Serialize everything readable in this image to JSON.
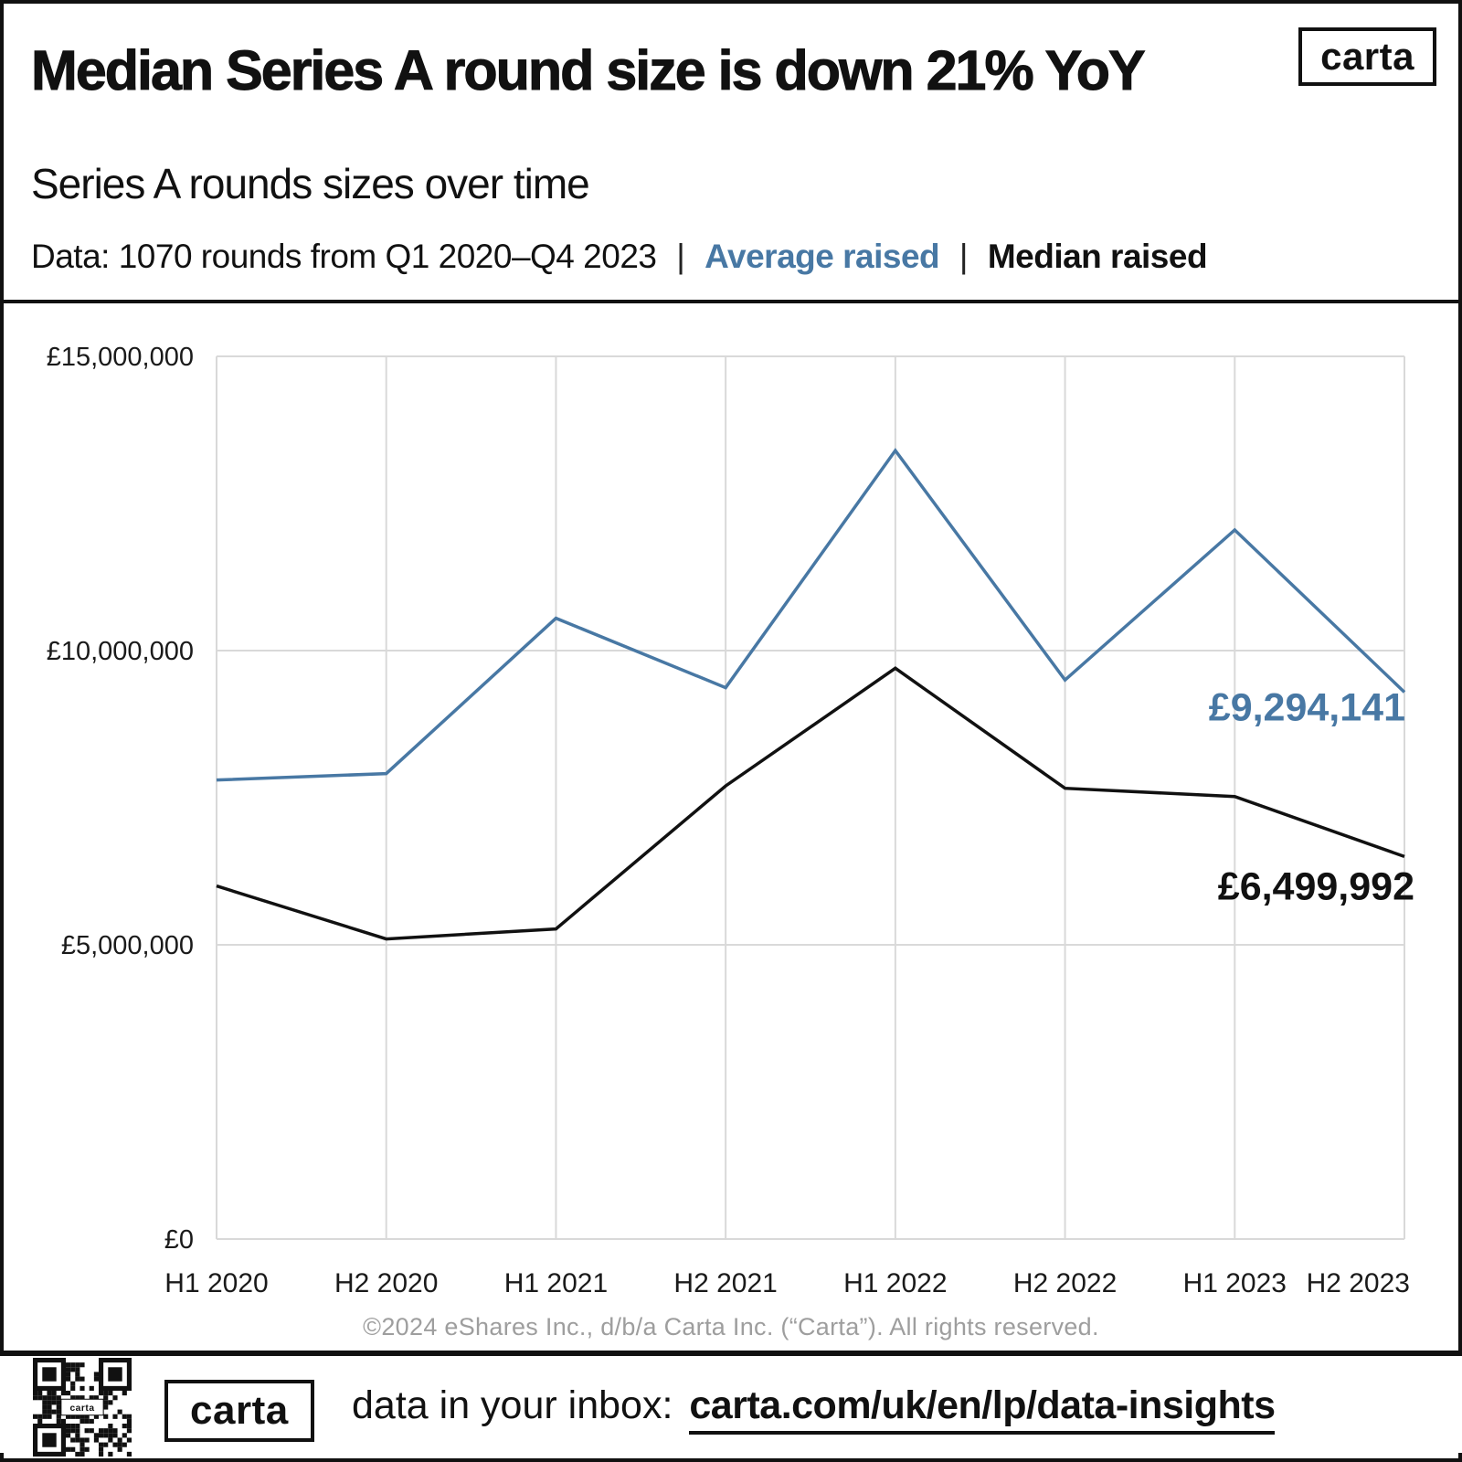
{
  "colors": {
    "accent_blue": "#4878A4",
    "ink": "#111111",
    "grid": "#D9D9D9",
    "muted": "#9E9E9E"
  },
  "header": {
    "title": "Median Series A round size is down 21% YoY",
    "logo_text": "carta",
    "subtitle": "Series A rounds sizes over time",
    "data_note": "Data: 1070 rounds from Q1 2020–Q4 2023",
    "pipe": "|",
    "legend": [
      {
        "label": "Average raised",
        "color": "#4878A4"
      },
      {
        "label": "Median raised",
        "color": "#111111"
      }
    ]
  },
  "chart_data": {
    "type": "line",
    "title": "Series A rounds sizes over time",
    "categories": [
      "H1 2020",
      "H2 2020",
      "H1 2021",
      "H2 2021",
      "H1 2022",
      "H2 2022",
      "H1 2023",
      "H2 2023"
    ],
    "series": [
      {
        "name": "Average raised",
        "color": "#4878A4",
        "values": [
          7800000,
          7910000,
          10550000,
          9370000,
          13400000,
          9500000,
          12050000,
          9294141
        ],
        "end_label": "£9,294,141"
      },
      {
        "name": "Median raised",
        "color": "#111111",
        "values": [
          6000000,
          5100000,
          5270000,
          7700000,
          9700000,
          7660000,
          7520000,
          6499992
        ],
        "end_label": "£6,499,992"
      }
    ],
    "ylim": [
      0,
      15000000
    ],
    "yticks": [
      {
        "value": 15000000,
        "label": "£15,000,000"
      },
      {
        "value": 10000000,
        "label": "£10,000,000"
      },
      {
        "value": 5000000,
        "label": "£5,000,000"
      },
      {
        "value": 0,
        "label": "£0"
      }
    ],
    "grid": true,
    "legend_position": "header",
    "xlabel": "",
    "ylabel": ""
  },
  "footer": {
    "copyright": "©2024 eShares Inc., d/b/a Carta Inc. (“Carta”). All rights reserved."
  },
  "bottom_bar": {
    "logo_text": "carta",
    "cta_text": "data in your inbox:",
    "url": "carta.com/uk/en/lp/data-insights",
    "qr_label": "carta"
  }
}
